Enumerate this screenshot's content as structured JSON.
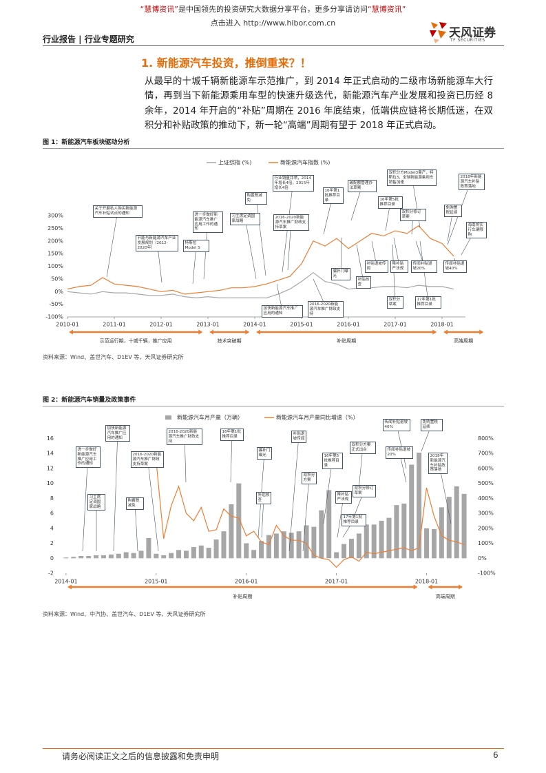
{
  "header": {
    "banner": [
      "“慧博资讯”",
      "是中国领先的投资研究大数据分享平台，更多分享请访问",
      "“慧博资讯”"
    ],
    "link_prefix": "点击进入",
    "url": "http://www.hibor.com.cn",
    "section": "行业报告 | 行业专题研究",
    "logo": "天风证券",
    "logo_en": "TF SECURITIES"
  },
  "heading": "1. 新能源汽车投资，推倒重来？！",
  "paragraph": "从最早的十城千辆新能源车示范推广，到 2014 年正式启动的二级市场新能源车大行情，再到当下新能源乘用车型的快速升级迭代，新能源汽车产业发展和投资已历经 8 余年，2014 年开启的“补贴”周期在 2016 年底结束，低端供应链将长期低迷，在双积分和补贴政策的推动下，新一轮“高端”周期有望于 2018 年正式启动。",
  "figures": [
    {
      "caption": "图 1：新能源汽车板块驱动分析",
      "source": "资料来源：Wind、盖世汽车、D1EV 等、天风证券研究所",
      "chart_data": {
        "type": "line",
        "x": [
          "2010-01",
          "2010-04",
          "2010-07",
          "2010-10",
          "2011-01",
          "2011-04",
          "2011-07",
          "2011-10",
          "2012-01",
          "2012-04",
          "2012-07",
          "2012-10",
          "2013-01",
          "2013-04",
          "2013-07",
          "2013-10",
          "2014-01",
          "2014-04",
          "2014-07",
          "2014-10",
          "2015-01",
          "2015-04",
          "2015-07",
          "2015-10",
          "2016-01",
          "2016-04",
          "2016-07",
          "2016-10",
          "2017-01",
          "2017-04",
          "2017-07",
          "2017-10",
          "2018-01",
          "2018-04"
        ],
        "xlim": [
          "2010-01",
          "2018-07"
        ],
        "xticks": [
          "2010-01",
          "2011-01",
          "2012-01",
          "2013-01",
          "2014-01",
          "2015-01",
          "2016-01",
          "2017-01",
          "2018-01"
        ],
        "ylim": [
          -100,
          330
        ],
        "yticks": [
          {
            "value": -100,
            "label": "-100%"
          },
          {
            "value": -50,
            "label": "-50%"
          },
          {
            "value": 0,
            "label": "0%"
          },
          {
            "value": 50,
            "label": "50%"
          },
          {
            "value": 100,
            "label": "100%"
          },
          {
            "value": 150,
            "label": "150%"
          },
          {
            "value": 200,
            "label": "200%"
          },
          {
            "value": 250,
            "label": "250%"
          },
          {
            "value": 300,
            "label": "300%"
          }
        ],
        "grid": false,
        "legend": "top",
        "series": [
          {
            "name": "上证综指 (%)",
            "color": "#a6a6a6",
            "values": [
              0,
              -5,
              -10,
              0,
              -5,
              -5,
              -10,
              -15,
              -15,
              -10,
              -20,
              -25,
              -20,
              -25,
              -25,
              -25,
              -25,
              -25,
              -10,
              10,
              40,
              75,
              40,
              30,
              10,
              15,
              15,
              20,
              20,
              15,
              25,
              20,
              20,
              10
            ]
          },
          {
            "name": "新能源汽车指数 (%)",
            "color": "#ed7d31",
            "values": [
              10,
              20,
              25,
              55,
              30,
              25,
              20,
              10,
              0,
              5,
              -10,
              -5,
              0,
              5,
              15,
              15,
              20,
              30,
              45,
              60,
              110,
              200,
              180,
              210,
              170,
              200,
              230,
              220,
              240,
              230,
              260,
              210,
              190,
              140
            ]
          }
        ],
        "periods": [
          {
            "label": "示范运行期，十城千辆，推广应用",
            "start": "2010-01",
            "end": "2012-12"
          },
          {
            "label": "技术突破期",
            "start": "2013-01",
            "end": "2013-12"
          },
          {
            "label": "补贴周期",
            "start": "2014-01",
            "end": "2017-12"
          },
          {
            "label": "高端周期",
            "start": "2018-01",
            "end": "2018-12"
          }
        ],
        "annotations": [
          "关于开展私人购买新能源汽车补贴试点的通知",
          "节能与新能源汽车产业发展规划（2012-2020年）",
          "进一步做好新能源汽车推广应用工作的通知",
          "特斯拉Model S",
          "习主席定调国家战略",
          "购置税减免",
          "行业销量井喷，2014年增长4倍，2015年增长4倍",
          "2016-2020新能源汽车推广财政支持草案",
          "加快新能源汽车推广应用的通知",
          "2016-2020新能源汽车推广财政支持",
          "16年第1批推荐目录",
          "骗补门曝光",
          "碳配额管理办法草案",
          "补贴核查",
          "补贴退坡传闻",
          "16年第5批推荐目录",
          "双积分方Model3量产，特斯拉3，全球新能源乘用车销售加速",
          "双积分修订草案",
          "降补贴严法规",
          "传闻补贴退坡20%",
          "双积分草案",
          "17年第1批推荐目录",
          "2018年新能源汽车补贴政策落地",
          "免购置税延续",
          "海南将实行车辆限购",
          "传闻补贴退坡40%"
        ]
      }
    },
    {
      "caption": "图 2：新能源汽车销量及政策事件",
      "source": "资料来源：Wind、中汽协、盖世汽车、D1EV 等、天风证券研究所",
      "chart_data": {
        "type": "combo",
        "x": [
          "2014-01",
          "2014-02",
          "2014-03",
          "2014-04",
          "2014-05",
          "2014-06",
          "2014-07",
          "2014-08",
          "2014-09",
          "2014-10",
          "2014-11",
          "2014-12",
          "2015-01",
          "2015-02",
          "2015-03",
          "2015-04",
          "2015-05",
          "2015-06",
          "2015-07",
          "2015-08",
          "2015-09",
          "2015-10",
          "2015-11",
          "2015-12",
          "2016-01",
          "2016-02",
          "2016-03",
          "2016-04",
          "2016-05",
          "2016-06",
          "2016-07",
          "2016-08",
          "2016-09",
          "2016-10",
          "2016-11",
          "2016-12",
          "2017-01",
          "2017-02",
          "2017-03",
          "2017-04",
          "2017-05",
          "2017-06",
          "2017-07",
          "2017-08",
          "2017-09",
          "2017-10",
          "2017-11",
          "2017-12",
          "2018-01",
          "2018-02",
          "2018-03",
          "2018-04",
          "2018-05",
          "2018-06"
        ],
        "xlim": [
          "2013-12",
          "2018-07"
        ],
        "xticks": [
          "2014-01",
          "2015-01",
          "2016-01",
          "2017-01",
          "2018-01"
        ],
        "ylim": [
          -2,
          16.5
        ],
        "yticks": [
          -2,
          0,
          2,
          4,
          6,
          8,
          10,
          12,
          14,
          16
        ],
        "y2lim": [
          -100,
          825
        ],
        "y2ticks": [
          {
            "value": -100,
            "label": "-100%"
          },
          {
            "value": 0,
            "label": "0%"
          },
          {
            "value": 100,
            "label": "100%"
          },
          {
            "value": 200,
            "label": "200%"
          },
          {
            "value": 300,
            "label": "300%"
          },
          {
            "value": 400,
            "label": "400%"
          },
          {
            "value": 500,
            "label": "500%"
          },
          {
            "value": 600,
            "label": "600%"
          },
          {
            "value": 700,
            "label": "700%"
          },
          {
            "value": 800,
            "label": "800%"
          }
        ],
        "grid": false,
        "legend": "top",
        "series": [
          {
            "name": "新能源汽车月产量（万辆）",
            "type": "bar",
            "color": "#a6a6a6",
            "values": [
              0.1,
              0.2,
              0.3,
              0.3,
              0.4,
              0.4,
              0.5,
              0.6,
              0.8,
              0.7,
              1.0,
              2.7,
              0.6,
              0.4,
              0.7,
              1.1,
              1.0,
              1.5,
              1.7,
              1.4,
              2.5,
              3.6,
              7.2,
              10.0,
              2.0,
              1.1,
              2.3,
              3.1,
              3.3,
              3.6,
              3.4,
              3.6,
              4.4,
              4.2,
              6.4,
              9.1,
              0.8,
              1.9,
              2.6,
              3.3,
              4.5,
              4.5,
              5.0,
              5.4,
              7.1,
              7.3,
              12.5,
              14.1,
              4.0,
              3.9,
              6.8,
              8.2,
              9.6,
              8.6
            ]
          },
          {
            "name": "新能源汽车月产量同比增速（%）",
            "type": "line",
            "axis": "y2",
            "color": "#ed7d31",
            "values": [
              null,
              null,
              null,
              null,
              null,
              null,
              null,
              null,
              null,
              null,
              null,
              null,
              650,
              130,
              350,
              480,
              300,
              250,
              340,
              180,
              190,
              330,
              280,
              270,
              150,
              180,
              110,
              90,
              220,
              150,
              120,
              120,
              100,
              20,
              0,
              -10,
              -60,
              -10,
              10,
              -20,
              40,
              30,
              40,
              50,
              60,
              70,
              50,
              70,
              470,
              280,
              150,
              120,
              110,
              90
            ]
          }
        ],
        "periods": [
          {
            "label": "补贴周期",
            "start": "2014-01",
            "end": "2017-12"
          },
          {
            "label": "高端周期",
            "start": "2018-01",
            "end": "2018-06"
          }
        ],
        "annotations": [
          "进一步做好新能源汽车推广应用工作的通知",
          "加快新能源汽车推广应用的通知",
          "习主席定调国家战略",
          "购置税减免",
          "2016-2020新能源汽车推广财政支持草案",
          "2016-2020新能源汽车推广财政支持",
          "16年第1批推荐目录",
          "骗补门曝光",
          "补贴核查",
          "补贴退坡传闻",
          "双积分方案",
          "16年第5批推荐目录",
          "双积分方案正式出台",
          "双积分修订草案",
          "降补贴严法规",
          "17年第1批推荐目录",
          "传闻补贴退坡40%",
          "传闻补贴退坡20%",
          "免购置税延续",
          "2018年新能源汽车补贴政策落地"
        ]
      }
    }
  ],
  "footer": {
    "disclaimer": "请务必阅读正文之后的信息披露和免责申明",
    "page": 6
  }
}
